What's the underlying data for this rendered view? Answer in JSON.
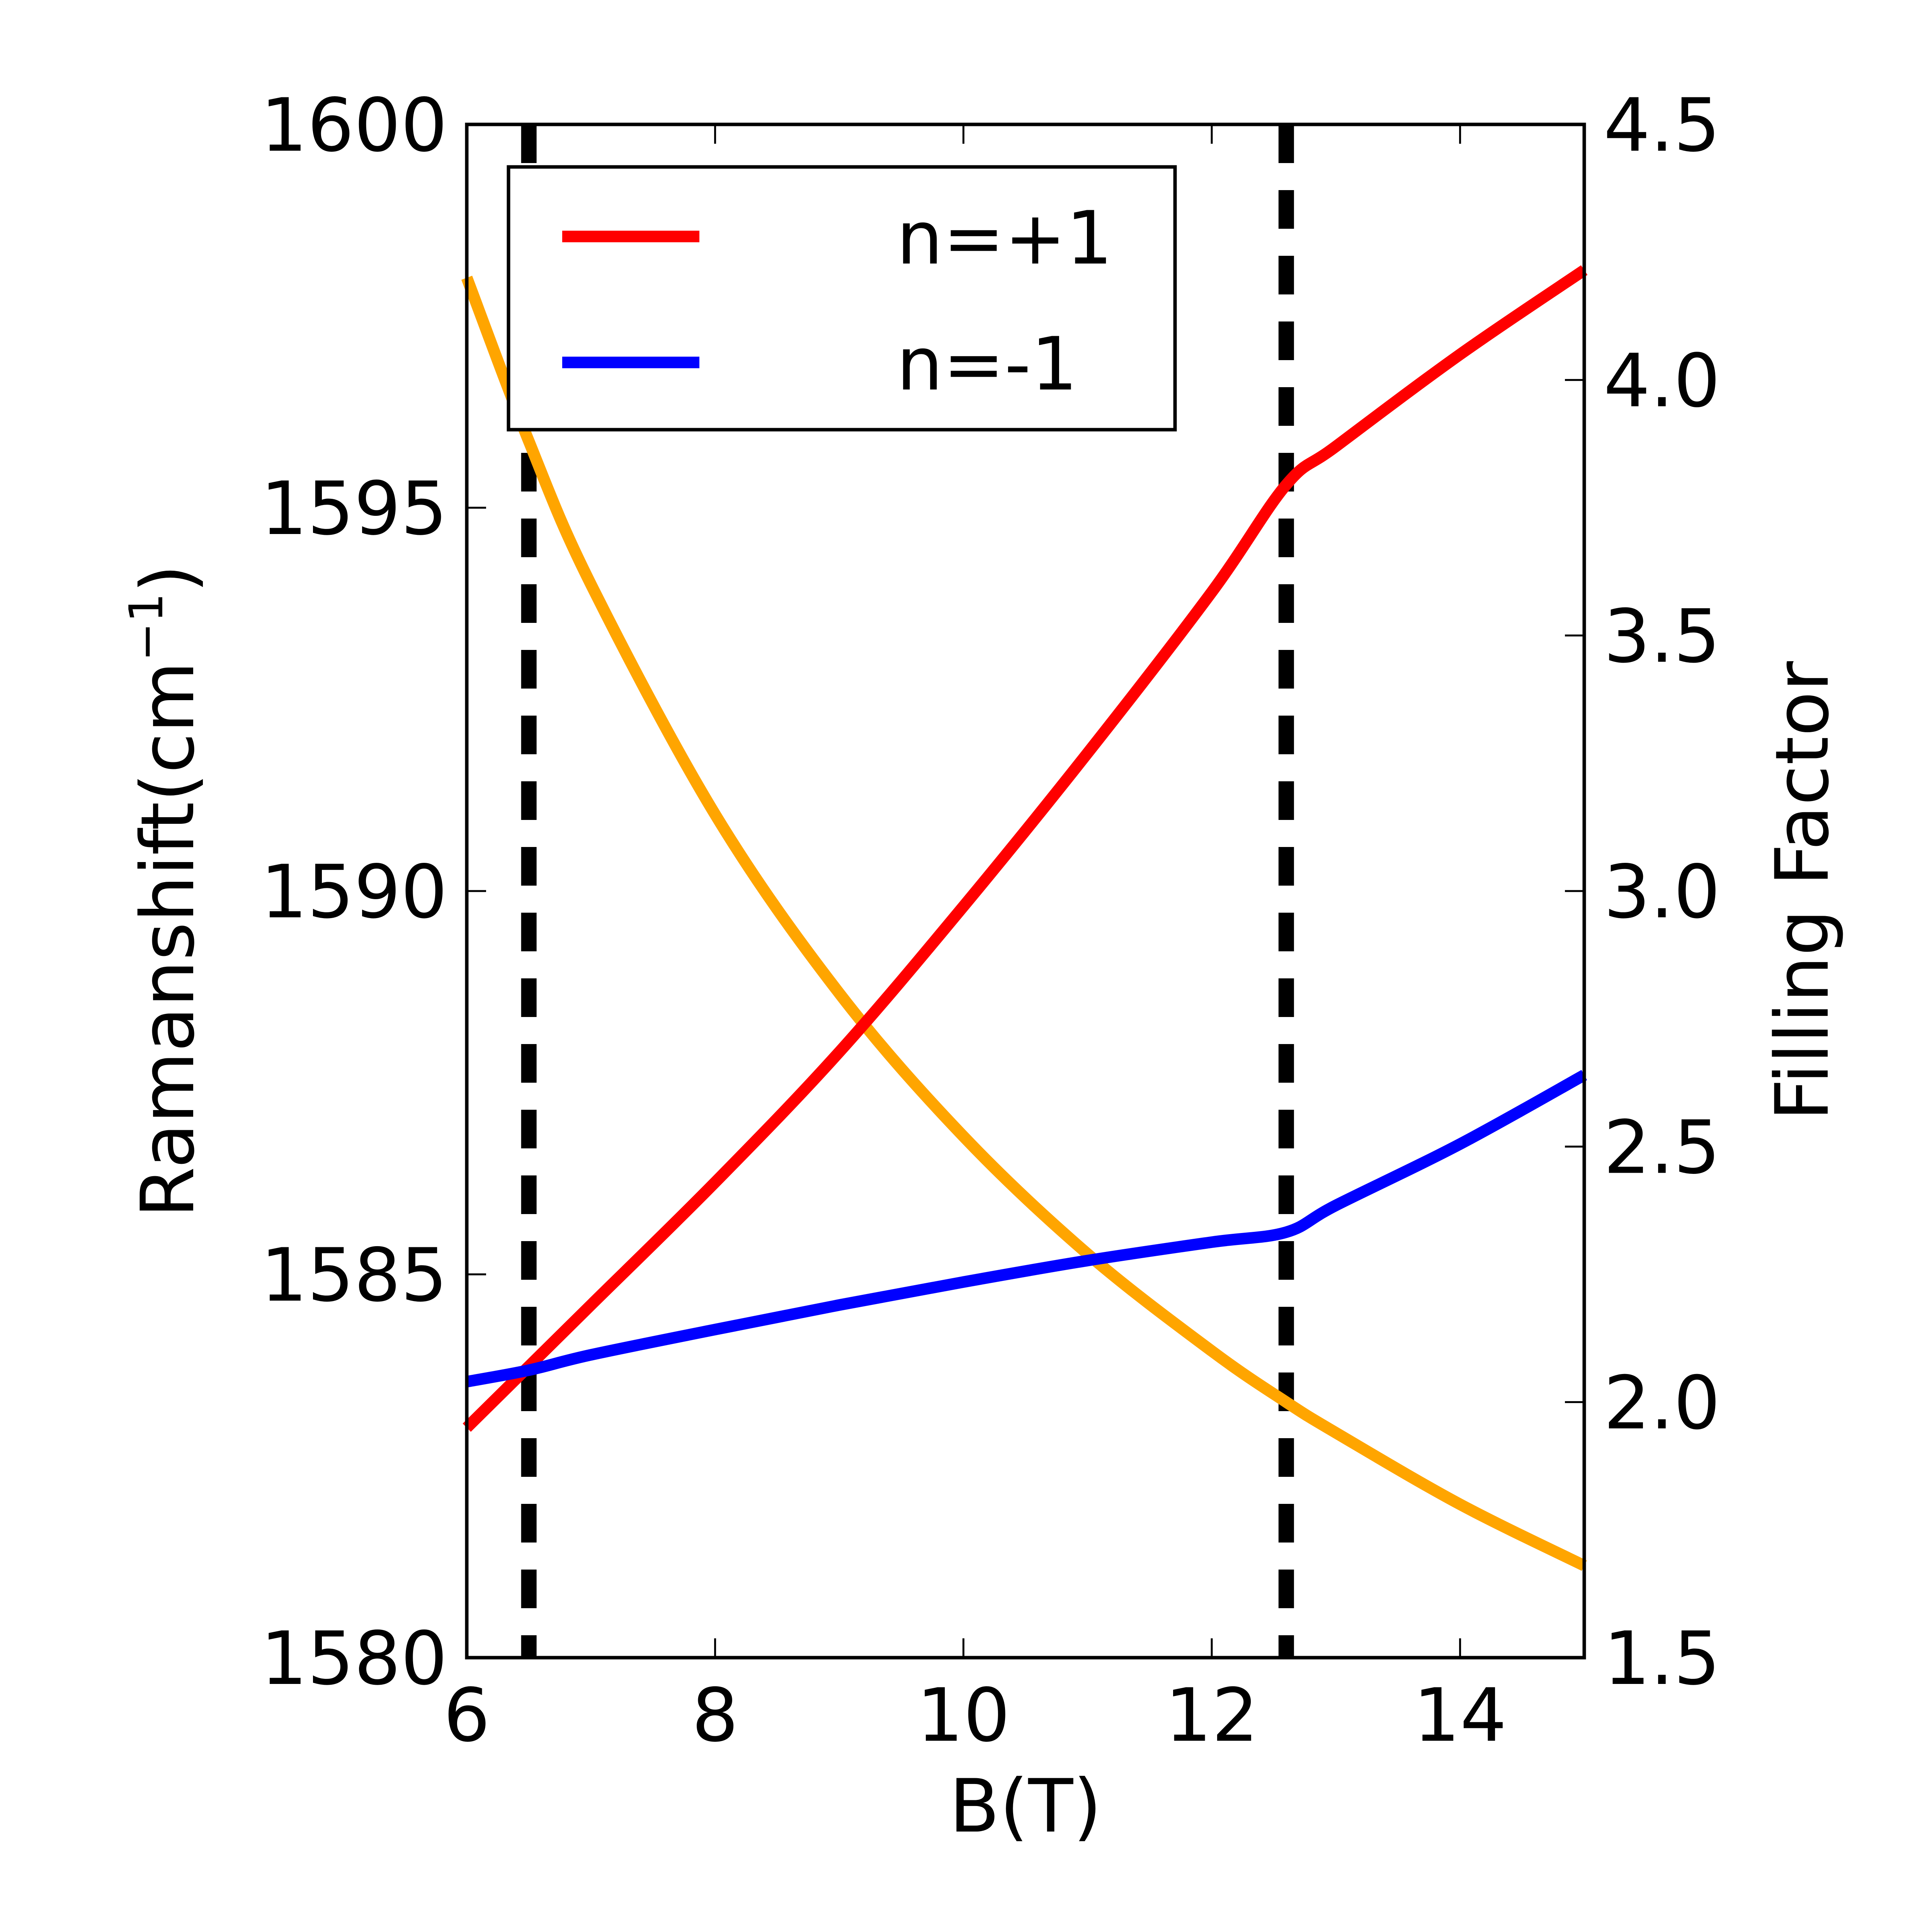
{
  "chart_data": {
    "type": "line",
    "xlabel": "B(T)",
    "ylabel": "Ramanshift(cm",
    "ylabel_superscript": "−1",
    "ylabel_close": ")",
    "y2label": "Filling Factor",
    "xlim": [
      6,
      15
    ],
    "ylim": [
      1580,
      1600
    ],
    "y2lim": [
      1.5,
      4.5
    ],
    "x_ticks": [
      "6",
      "8",
      "10",
      "12",
      "14"
    ],
    "y_ticks": [
      "1580",
      "1585",
      "1590",
      "1595",
      "1600"
    ],
    "y2_ticks": [
      "1.5",
      "2.0",
      "2.5",
      "3.0",
      "3.5",
      "4.0",
      "4.5"
    ],
    "vertical_dashed_lines": [
      6.5,
      12.6
    ],
    "legend": {
      "position": "upper-left",
      "entries": [
        {
          "label": "n=+1",
          "color": "#ff0000"
        },
        {
          "label": "n=-1",
          "color": "#0000ff"
        }
      ]
    },
    "series": [
      {
        "name": "n=+1",
        "axis": "left",
        "color": "#ff0000",
        "x": [
          6.0,
          6.5,
          7.0,
          8.0,
          9.0,
          10.0,
          11.0,
          12.0,
          12.6,
          13.0,
          14.0,
          15.0
        ],
        "y": [
          1583.0,
          1583.8,
          1584.6,
          1586.2,
          1587.9,
          1589.8,
          1591.8,
          1593.9,
          1595.3,
          1595.8,
          1597.0,
          1598.1
        ]
      },
      {
        "name": "n=-1",
        "axis": "left",
        "color": "#0000ff",
        "x": [
          6.0,
          6.5,
          7.0,
          8.0,
          9.0,
          10.0,
          11.0,
          12.0,
          12.6,
          13.0,
          14.0,
          15.0
        ],
        "y": [
          1583.6,
          1583.75,
          1583.95,
          1584.28,
          1584.6,
          1584.9,
          1585.18,
          1585.42,
          1585.55,
          1585.9,
          1586.7,
          1587.6
        ]
      },
      {
        "name": "Filling Factor",
        "axis": "right",
        "color": "#ffa500",
        "x": [
          6.0,
          6.5,
          7.0,
          8.0,
          9.0,
          10.0,
          11.0,
          12.0,
          12.6,
          13.0,
          14.0,
          15.0
        ],
        "y": [
          4.2,
          3.88,
          3.6,
          3.15,
          2.8,
          2.52,
          2.29,
          2.1,
          2.0,
          1.94,
          1.8,
          1.68
        ]
      }
    ]
  }
}
